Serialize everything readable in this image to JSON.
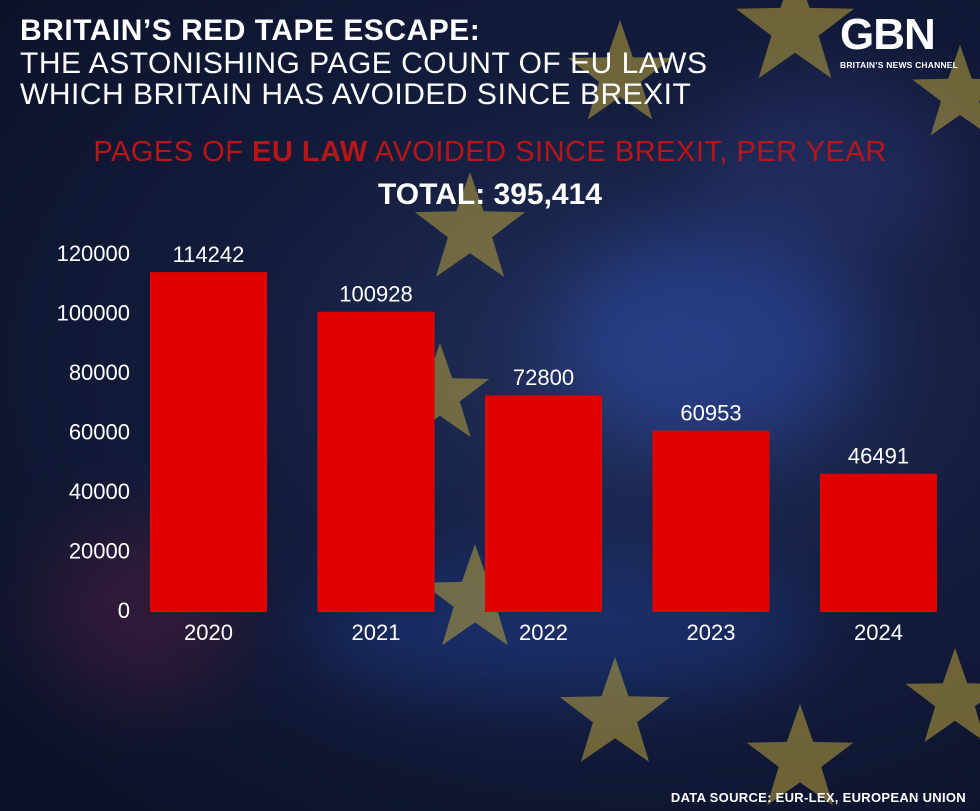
{
  "header": {
    "title": "BRITAIN’S RED TAPE ESCAPE:",
    "subtitle_line1": "THE ASTONISHING PAGE COUNT OF EU LAWS",
    "subtitle_line2": "WHICH BRITAIN HAS AVOIDED SINCE BREXIT"
  },
  "logo": {
    "wordmark": "GBN",
    "tagline": "BRITAIN’S NEWS CHANNEL"
  },
  "colors": {
    "bar": "#e00000",
    "subtitle_red": "#b81616",
    "star": "#b9a33a"
  },
  "chart_data": {
    "type": "bar",
    "title_prefix": "PAGES OF ",
    "title_emphasis": "EU LAW",
    "title_suffix": " AVOIDED SINCE BREXIT, PER YEAR",
    "total_label": "TOTAL: 395,414",
    "categories": [
      "2020",
      "2021",
      "2022",
      "2023",
      "2024"
    ],
    "values": [
      114242,
      100928,
      72800,
      60953,
      46491
    ],
    "yticks": [
      0,
      20000,
      40000,
      60000,
      80000,
      100000,
      120000
    ],
    "ylim": [
      0,
      120000
    ],
    "grid": false,
    "legend": "none"
  },
  "footer": {
    "source": "DATA SOURCE: EUR-LEX, EUROPEAN UNION"
  }
}
